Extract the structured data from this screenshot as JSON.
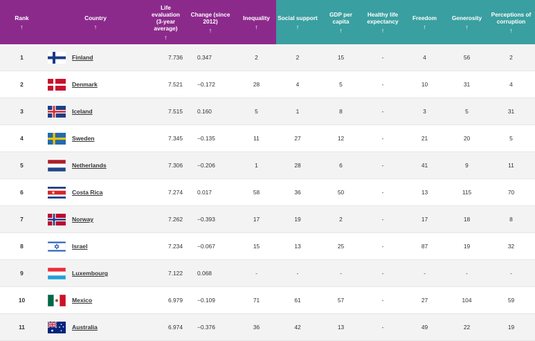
{
  "headers": [
    {
      "label": "Rank",
      "arrow": "↑"
    },
    {
      "label": "Country",
      "arrow": "↑"
    },
    {
      "label": "Life evaluation (3-year average)",
      "arrow": "↑"
    },
    {
      "label": "Change (since 2012)",
      "arrow": "↑"
    },
    {
      "label": "Inequality",
      "arrow": "↑"
    },
    {
      "label": "Social support",
      "arrow": "↑"
    },
    {
      "label": "GDP per capita",
      "arrow": "↑"
    },
    {
      "label": "Healthy life expectancy",
      "arrow": "↑"
    },
    {
      "label": "Freedom",
      "arrow": "↑"
    },
    {
      "label": "Generosity",
      "arrow": "↑"
    },
    {
      "label": "Perceptions of corruption",
      "arrow": "↑"
    }
  ],
  "rows": [
    {
      "rank": "1",
      "country": "Finland",
      "flag": "finland-flag",
      "life": "7.736",
      "change": "0.347",
      "inequality": "2",
      "social": "2",
      "gdp": "15",
      "health": "-",
      "freedom": "4",
      "generosity": "56",
      "corruption": "2"
    },
    {
      "rank": "2",
      "country": "Denmark",
      "flag": "denmark-flag",
      "life": "7.521",
      "change": "−0.172",
      "inequality": "28",
      "social": "4",
      "gdp": "5",
      "health": "-",
      "freedom": "10",
      "generosity": "31",
      "corruption": "4"
    },
    {
      "rank": "3",
      "country": "Iceland",
      "flag": "iceland-flag",
      "life": "7.515",
      "change": "0.160",
      "inequality": "5",
      "social": "1",
      "gdp": "8",
      "health": "-",
      "freedom": "3",
      "generosity": "5",
      "corruption": "31"
    },
    {
      "rank": "4",
      "country": "Sweden",
      "flag": "sweden-flag",
      "life": "7.345",
      "change": "−0.135",
      "inequality": "11",
      "social": "27",
      "gdp": "12",
      "health": "-",
      "freedom": "21",
      "generosity": "20",
      "corruption": "5"
    },
    {
      "rank": "5",
      "country": "Netherlands",
      "flag": "netherlands-flag",
      "life": "7.306",
      "change": "−0.206",
      "inequality": "1",
      "social": "28",
      "gdp": "6",
      "health": "-",
      "freedom": "41",
      "generosity": "9",
      "corruption": "11"
    },
    {
      "rank": "6",
      "country": "Costa Rica",
      "flag": "costa-rica-flag",
      "life": "7.274",
      "change": "0.017",
      "inequality": "58",
      "social": "36",
      "gdp": "50",
      "health": "-",
      "freedom": "13",
      "generosity": "115",
      "corruption": "70"
    },
    {
      "rank": "7",
      "country": "Norway",
      "flag": "norway-flag",
      "life": "7.262",
      "change": "−0.393",
      "inequality": "17",
      "social": "19",
      "gdp": "2",
      "health": "-",
      "freedom": "17",
      "generosity": "18",
      "corruption": "8"
    },
    {
      "rank": "8",
      "country": "Israel",
      "flag": "israel-flag",
      "life": "7.234",
      "change": "−0.067",
      "inequality": "15",
      "social": "13",
      "gdp": "25",
      "health": "-",
      "freedom": "87",
      "generosity": "19",
      "corruption": "32"
    },
    {
      "rank": "9",
      "country": "Luxembourg",
      "flag": "luxembourg-flag",
      "life": "7.122",
      "change": "0.068",
      "inequality": "-",
      "social": "-",
      "gdp": "-",
      "health": "-",
      "freedom": "-",
      "generosity": "-",
      "corruption": "-"
    },
    {
      "rank": "10",
      "country": "Mexico",
      "flag": "mexico-flag",
      "life": "6.979",
      "change": "−0.109",
      "inequality": "71",
      "social": "61",
      "gdp": "57",
      "health": "-",
      "freedom": "27",
      "generosity": "104",
      "corruption": "59"
    },
    {
      "rank": "11",
      "country": "Australia",
      "flag": "australia-flag",
      "life": "6.974",
      "change": "−0.376",
      "inequality": "36",
      "social": "42",
      "gdp": "13",
      "health": "-",
      "freedom": "49",
      "generosity": "22",
      "corruption": "19"
    }
  ],
  "colors": {
    "header_purple": "#8c2a8c",
    "header_teal": "#3a9fa0"
  }
}
